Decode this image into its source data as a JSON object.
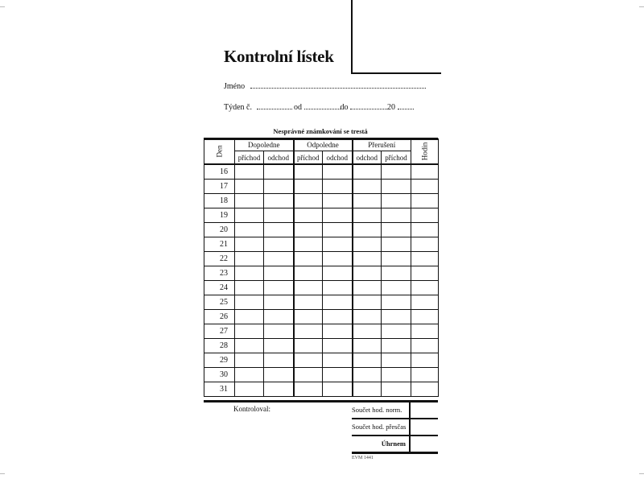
{
  "title": "Kontrolní lístek",
  "name_label": "Jméno",
  "week_label": "Týden č.",
  "from_label": "od",
  "to_label": "do",
  "year_prefix": "20",
  "caption": "Nesprávné známkování se trestá",
  "table": {
    "day_header": "Den",
    "groups": [
      "Dopoledne",
      "Odpoledne",
      "Přerušení"
    ],
    "hours_header": "Hodin",
    "subheaders": [
      "příchod",
      "odchod",
      "příchod",
      "odchod",
      "odchod",
      "příchod"
    ],
    "days": [
      "16",
      "17",
      "18",
      "19",
      "20",
      "21",
      "22",
      "23",
      "24",
      "25",
      "26",
      "27",
      "28",
      "29",
      "30",
      "31"
    ]
  },
  "footer": {
    "checked_by": "Kontroloval:",
    "sum_norm": "Součet hod. norm.",
    "sum_overtime": "Součet hod. přesčas",
    "total": "Úhrnem",
    "form_code": "EVM 1441"
  }
}
